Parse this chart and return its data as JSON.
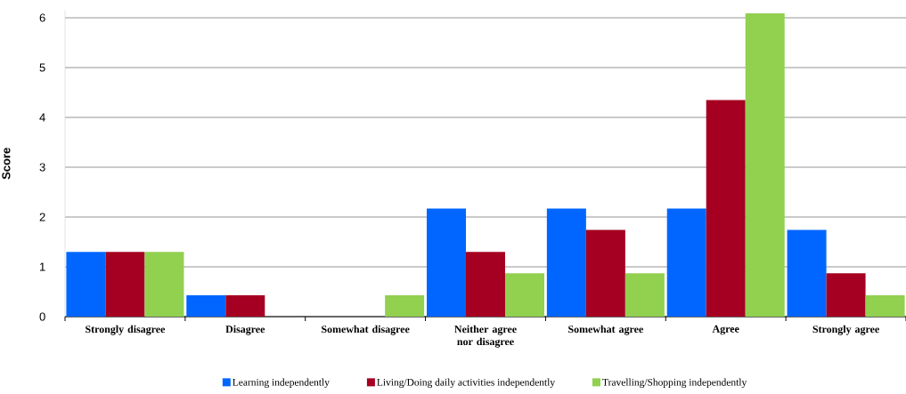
{
  "chart_data": {
    "type": "bar",
    "ylabel": "Score",
    "categories": [
      "Strongly disagree",
      "Disagree",
      "Somewhat disagree",
      "Neither agree nor disagree",
      "Somewhat agree",
      "Agree",
      "Strongly agree"
    ],
    "series": [
      {
        "name": "Learning independently",
        "color": "#0066ff",
        "values": [
          1.3,
          0.43,
          0,
          2.17,
          2.17,
          2.17,
          1.74
        ]
      },
      {
        "name": "Living/Doing daily activities independently",
        "color": "#a50021",
        "values": [
          1.3,
          0.43,
          0,
          1.3,
          1.74,
          4.35,
          0.87
        ]
      },
      {
        "name": "Travelling/Shopping independently",
        "color": "#92d050",
        "values": [
          1.3,
          0,
          0.43,
          0.87,
          0.87,
          6.09,
          0.43
        ]
      }
    ],
    "ylim": [
      0,
      6.15
    ],
    "yticks": [
      0,
      1,
      2,
      3,
      4,
      5,
      6
    ],
    "grid": "y",
    "legend": "bottom"
  }
}
